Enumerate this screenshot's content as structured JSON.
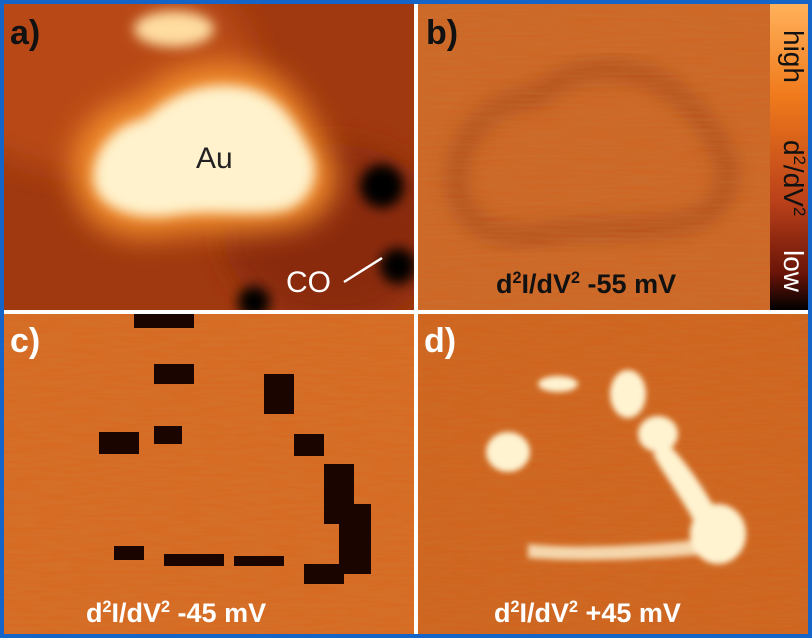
{
  "panels": {
    "a": {
      "label": "a)",
      "annotations": {
        "island": "Au",
        "molecule": "CO"
      }
    },
    "b": {
      "label": "b)",
      "caption": {
        "prefix": "d",
        "exp1": "2",
        "mid": "I/dV",
        "exp2": "2",
        "suffix": " -55 mV"
      }
    },
    "c": {
      "label": "c)",
      "caption": {
        "prefix": "d",
        "exp1": "2",
        "mid": "I/dV",
        "exp2": "2",
        "suffix": " -45 mV"
      }
    },
    "d": {
      "label": "d)",
      "caption": {
        "prefix": "d",
        "exp1": "2",
        "mid": "I/dV",
        "exp2": "2",
        "suffix": " +45 mV"
      }
    }
  },
  "colorbar": {
    "high": "high",
    "low": "low",
    "quantity": {
      "prefix": "d",
      "exp1": "2",
      "mid": "/dV",
      "exp2": "2"
    }
  },
  "colors": {
    "frame": "#1565c8",
    "mid_orange": "#d8661e",
    "dark": "#000000",
    "bright": "#fff6d8"
  }
}
